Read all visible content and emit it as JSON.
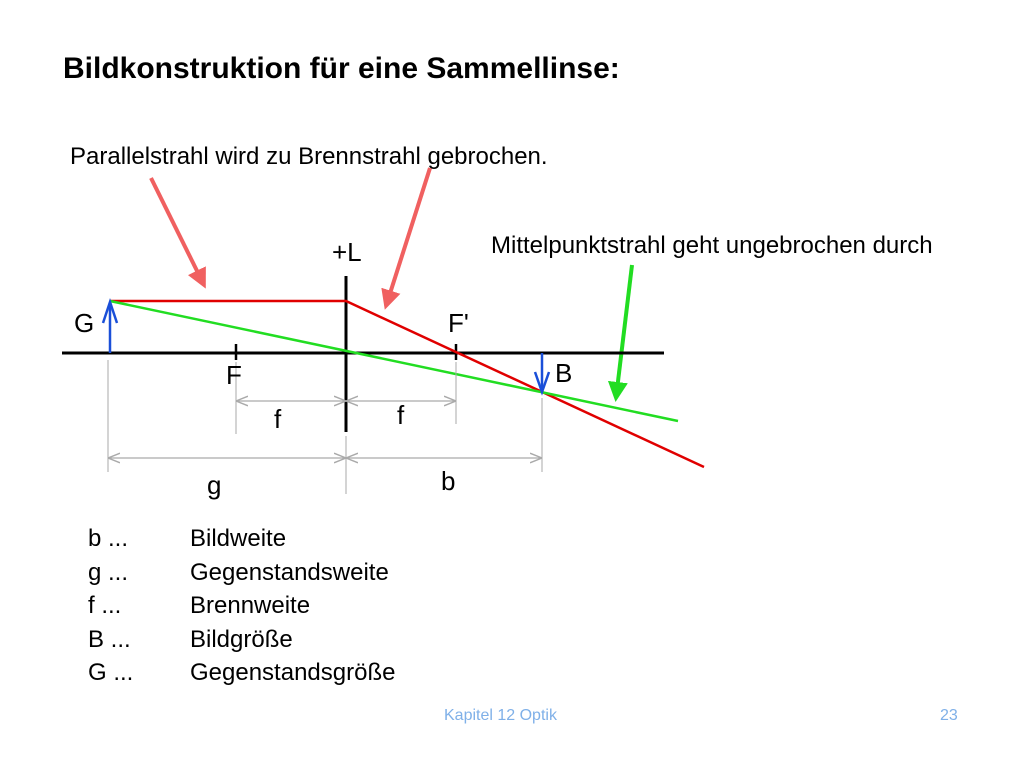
{
  "slide": {
    "title": "Bildkonstruktion für eine Sammellinse:"
  },
  "annotations": {
    "parallel_ray": "Parallelstrahl wird zu Brennstrahl gebrochen.",
    "center_ray": "Mittelpunktstrahl geht ungebrochen durch"
  },
  "diagram": {
    "labels": {
      "lens": "+L",
      "object": "G",
      "image": "B",
      "focus_front": "F",
      "focus_back": "F'",
      "focal_length_left": "f",
      "focal_length_right": "f",
      "object_distance": "g",
      "image_distance": "b"
    },
    "colors": {
      "parallel_ray": "#e00000",
      "center_ray": "#22dd22",
      "arrow_red": "#f06060",
      "arrow_green": "#22dd22",
      "object_arrow": "#1a4fd8",
      "dimension": "#aaaaaa"
    }
  },
  "legend": [
    {
      "symbol": "b ...",
      "meaning": "Bildweite"
    },
    {
      "symbol": "g ...",
      "meaning": "Gegenstandsweite"
    },
    {
      "symbol": "f ...",
      "meaning": "Brennweite"
    },
    {
      "symbol": "B ...",
      "meaning": "Bildgröße"
    },
    {
      "symbol": "G ...",
      "meaning": "Gegenstandsgröße"
    }
  ],
  "footer": {
    "chapter": "Kapitel 12 Optik",
    "page_number": "23",
    "color": "#7fb0e8"
  }
}
